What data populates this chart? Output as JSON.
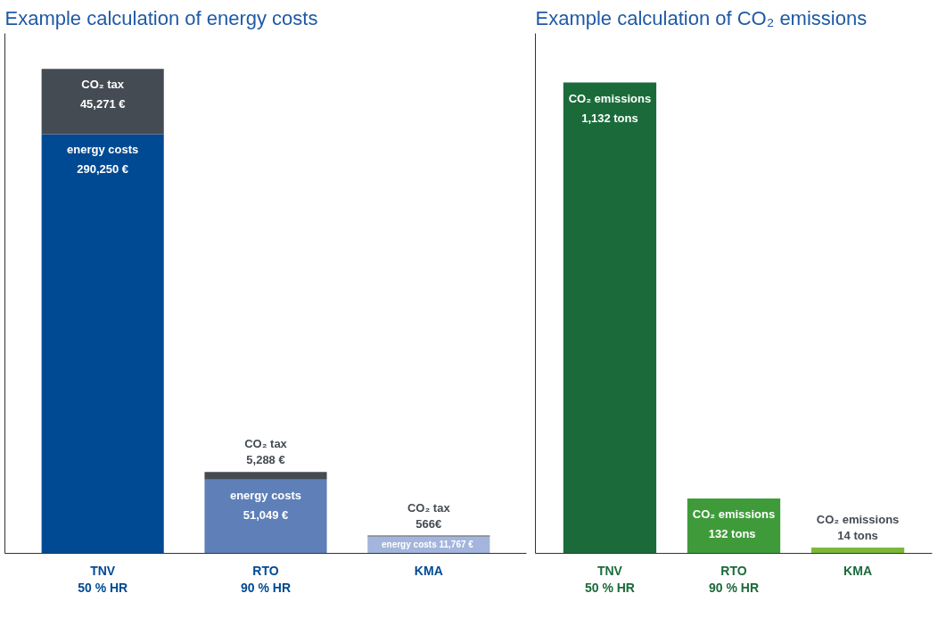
{
  "chart_data": [
    {
      "type": "bar",
      "title": "Example calculation of energy costs",
      "categories": [
        "TNV\n50 % HR",
        "RTO\n90 % HR",
        "KMA"
      ],
      "stacked": true,
      "tick_labels": "x",
      "ylim": [
        0,
        360000
      ],
      "grid": false,
      "legend": false,
      "series": [
        {
          "name": "energy costs",
          "colors": [
            "#004a93",
            "#5e7fb8",
            "#a3b5dc"
          ],
          "values": [
            290250,
            51049,
            11767
          ],
          "value_labels": [
            "290,250 €",
            "51,049 €",
            "11,767 €"
          ]
        },
        {
          "name": "CO₂ tax",
          "colors": [
            "#454b52",
            "#454b52",
            "#454b52"
          ],
          "values": [
            45271,
            5288,
            566
          ],
          "value_labels": [
            "45,271 €",
            "5,288 €",
            "566€"
          ]
        }
      ]
    },
    {
      "type": "bar",
      "title": "Example calculation of CO₂ emissions",
      "categories": [
        "TNV\n50 % HR",
        "RTO\n90 % HR",
        "KMA"
      ],
      "tick_labels": "x",
      "ylim": [
        0,
        1250
      ],
      "grid": false,
      "legend": false,
      "series": [
        {
          "name": "CO₂ emissions",
          "colors": [
            "#1b6b3a",
            "#3f9b3a",
            "#7bb83a"
          ],
          "values": [
            1132,
            132,
            14
          ],
          "value_labels": [
            "1,132 tons",
            "132  tons",
            "14 tons"
          ]
        }
      ]
    }
  ]
}
